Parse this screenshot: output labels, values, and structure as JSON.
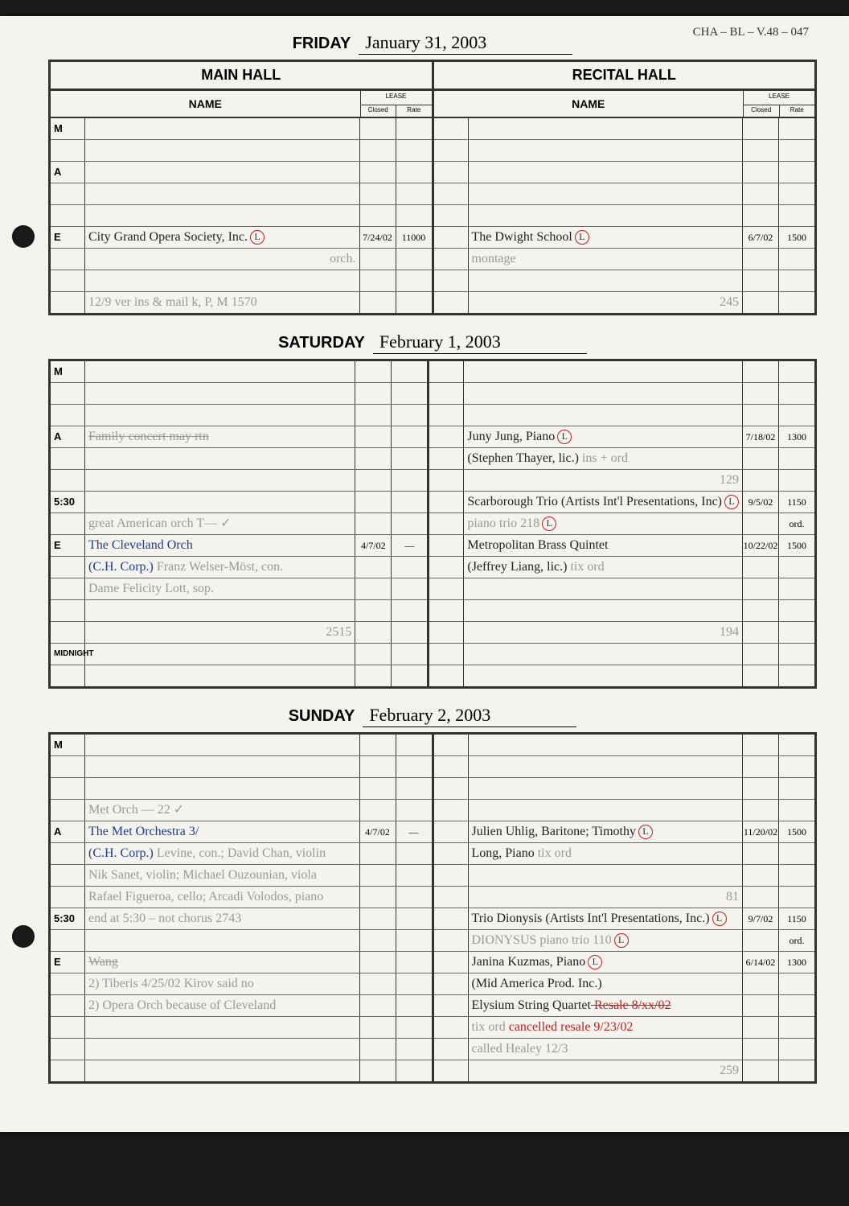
{
  "archive_ref": "CHA – BL – V.48 – 047",
  "days": [
    {
      "day_name": "FRIDAY",
      "day_date": "January 31, 2003",
      "show_hall_headers": true,
      "main": [
        {
          "time": "M",
          "name": "",
          "closed": "",
          "rate": ""
        },
        {
          "time": "",
          "name": "",
          "closed": "",
          "rate": ""
        },
        {
          "time": "A",
          "name": "",
          "closed": "",
          "rate": ""
        },
        {
          "time": "",
          "name": "",
          "closed": "",
          "rate": ""
        },
        {
          "time": "",
          "name": "",
          "closed": "",
          "rate": ""
        },
        {
          "time": "E",
          "name": "City Grand Opera Society, Inc.",
          "circled": true,
          "closed": "7/24/02",
          "rate": "11000"
        },
        {
          "time": "",
          "name": "",
          "name_extra_pencil": "orch.",
          "closed": "",
          "rate": ""
        },
        {
          "time": "",
          "name": "",
          "closed": "",
          "rate": ""
        },
        {
          "time": "",
          "name": "",
          "name_pencil": "12/9 ver ins & mail k, P, M    1570",
          "closed": "",
          "rate": ""
        }
      ],
      "recital": [
        {
          "time": "",
          "name": "",
          "closed": "",
          "rate": ""
        },
        {
          "time": "",
          "name": "",
          "closed": "",
          "rate": ""
        },
        {
          "time": "",
          "name": "",
          "closed": "",
          "rate": ""
        },
        {
          "time": "",
          "name": "",
          "closed": "",
          "rate": ""
        },
        {
          "time": "",
          "name": "",
          "closed": "",
          "rate": ""
        },
        {
          "time": "",
          "name": "The Dwight School",
          "circled": true,
          "closed": "6/7/02",
          "rate": "1500"
        },
        {
          "time": "",
          "name": "",
          "name_pencil": "montage",
          "closed": "",
          "rate": ""
        },
        {
          "time": "",
          "name": "",
          "closed": "",
          "rate": ""
        },
        {
          "time": "",
          "name": "",
          "name_pencil_right": "245",
          "closed": "",
          "rate": ""
        }
      ]
    },
    {
      "day_name": "SATURDAY",
      "day_date": "February 1, 2003",
      "show_hall_headers": false,
      "main": [
        {
          "time": "M",
          "name": "",
          "closed": "",
          "rate": ""
        },
        {
          "time": "",
          "name": "",
          "closed": "",
          "rate": ""
        },
        {
          "time": "",
          "name": "",
          "closed": "",
          "rate": ""
        },
        {
          "time": "A",
          "name": "",
          "name_pencil_strike": "Family concert  may rtn",
          "closed": "",
          "rate": ""
        },
        {
          "time": "",
          "name": "",
          "closed": "",
          "rate": ""
        },
        {
          "time": "",
          "name": "",
          "closed": "",
          "rate": ""
        },
        {
          "time": "5:30",
          "name": "",
          "closed": "",
          "rate": ""
        },
        {
          "time": "",
          "name": "",
          "name_pencil": "great American orch T—  ✓",
          "closed": "",
          "rate": ""
        },
        {
          "time": "E",
          "name_blue": "The Cleveland Orch",
          "closed": "4/7/02",
          "rate": "—"
        },
        {
          "time": "",
          "name_blue": "(C.H. Corp.)",
          "name_pencil_after": " Franz Welser-Möst, con.",
          "closed": "",
          "rate": ""
        },
        {
          "time": "",
          "name": "",
          "name_pencil": "Dame Felicity Lott, sop.",
          "closed": "",
          "rate": ""
        },
        {
          "time": "",
          "name": "",
          "closed": "",
          "rate": ""
        },
        {
          "time": "",
          "name": "",
          "name_pencil_right": "2515",
          "closed": "",
          "rate": ""
        },
        {
          "time": "MIDNIGHT",
          "name": "",
          "closed": "",
          "rate": ""
        },
        {
          "time": "",
          "name": "",
          "closed": "",
          "rate": ""
        }
      ],
      "recital": [
        {
          "time": "",
          "name": "",
          "closed": "",
          "rate": ""
        },
        {
          "time": "",
          "name": "",
          "closed": "",
          "rate": ""
        },
        {
          "time": "",
          "name": "",
          "closed": "",
          "rate": ""
        },
        {
          "time": "",
          "name": "Juny Jung, Piano",
          "circled": true,
          "closed": "7/18/02",
          "rate": "1300"
        },
        {
          "time": "",
          "name": "(Stephen Thayer, lic.)",
          "name_pencil_after": "  ins + ord",
          "closed": "",
          "rate": ""
        },
        {
          "time": "",
          "name": "",
          "name_pencil_right": "129",
          "closed": "",
          "rate": ""
        },
        {
          "time": "",
          "name": "Scarborough Trio (Artists Int'l Presentations, Inc)",
          "circled": true,
          "closed": "9/5/02",
          "rate": "1150"
        },
        {
          "time": "",
          "name": "",
          "name_pencil": "piano trio    218",
          "name_pencil_after_circled": true,
          "closed": "",
          "rate": "ord."
        },
        {
          "time": "",
          "name": "Metropolitan Brass Quintet",
          "closed": "10/22/02",
          "rate": "1500"
        },
        {
          "time": "",
          "name": "(Jeffrey Liang, lic.)",
          "name_pencil_after": "  tix ord",
          "closed": "",
          "rate": ""
        },
        {
          "time": "",
          "name": "",
          "closed": "",
          "rate": ""
        },
        {
          "time": "",
          "name": "",
          "closed": "",
          "rate": ""
        },
        {
          "time": "",
          "name": "",
          "name_pencil_right": "194",
          "closed": "",
          "rate": ""
        },
        {
          "time": "",
          "name": "",
          "closed": "",
          "rate": ""
        },
        {
          "time": "",
          "name": "",
          "closed": "",
          "rate": ""
        }
      ]
    },
    {
      "day_name": "SUNDAY",
      "day_date": "February 2, 2003",
      "show_hall_headers": false,
      "main": [
        {
          "time": "M",
          "name": "",
          "closed": "",
          "rate": ""
        },
        {
          "time": "",
          "name": "",
          "closed": "",
          "rate": ""
        },
        {
          "time": "",
          "name": "",
          "closed": "",
          "rate": ""
        },
        {
          "time": "",
          "name": "",
          "name_pencil": "Met Orch — 22        ✓",
          "closed": "",
          "rate": ""
        },
        {
          "time": "A",
          "name_blue": "The Met Orchestra        3/",
          "closed": "4/7/02",
          "rate": "—"
        },
        {
          "time": "",
          "name_blue": "(C.H. Corp.)",
          "name_pencil_after": " Levine, con.; David Chan, violin",
          "closed": "",
          "rate": ""
        },
        {
          "time": "",
          "name": "",
          "name_pencil": "Nik Sanet, violin; Michael Ouzounian, viola",
          "closed": "",
          "rate": ""
        },
        {
          "time": "",
          "name": "",
          "name_pencil": "Rafael Figueroa, cello; Arcadi Volodos, piano",
          "closed": "",
          "rate": ""
        },
        {
          "time": "5:30",
          "name": "",
          "name_pencil": "end at 5:30 – not chorus     2743",
          "closed": "",
          "rate": ""
        },
        {
          "time": "",
          "name": "",
          "closed": "",
          "rate": ""
        },
        {
          "time": "E",
          "name": "",
          "name_pencil_strike": "Wang",
          "closed": "",
          "rate": ""
        },
        {
          "time": "",
          "name": "",
          "name_pencil": "2) Tiberis 4/25/02 Kirov said no",
          "closed": "",
          "rate": ""
        },
        {
          "time": "",
          "name": "",
          "name_pencil": "2) Opera Orch    because of Cleveland",
          "closed": "",
          "rate": ""
        },
        {
          "time": "",
          "name": "",
          "closed": "",
          "rate": ""
        },
        {
          "time": "",
          "name": "",
          "closed": "",
          "rate": ""
        },
        {
          "time": "",
          "name": "",
          "closed": "",
          "rate": ""
        }
      ],
      "recital": [
        {
          "time": "",
          "name": "",
          "closed": "",
          "rate": ""
        },
        {
          "time": "",
          "name": "",
          "closed": "",
          "rate": ""
        },
        {
          "time": "",
          "name": "",
          "closed": "",
          "rate": ""
        },
        {
          "time": "",
          "name": "",
          "closed": "",
          "rate": ""
        },
        {
          "time": "",
          "name": "Julien Uhlig, Baritone; Timothy",
          "circled": true,
          "closed": "11/20/02",
          "rate": "1500"
        },
        {
          "time": "",
          "name": "Long, Piano",
          "name_pencil_after": "   tix ord",
          "closed": "",
          "rate": ""
        },
        {
          "time": "",
          "name": "",
          "closed": "",
          "rate": ""
        },
        {
          "time": "",
          "name": "",
          "name_pencil_right": "81",
          "closed": "",
          "rate": ""
        },
        {
          "time": "",
          "name": "Trio Dionysis (Artists Int'l Presentations, Inc.)",
          "circled": true,
          "closed": "9/7/02",
          "rate": "1150"
        },
        {
          "time": "",
          "name": "",
          "name_pencil": " DIONYSUS    piano trio    110",
          "name_pencil_after_circled": true,
          "closed": "",
          "rate": "ord."
        },
        {
          "time": "",
          "name": "Janina Kuzmas, Piano",
          "circled": true,
          "closed": "6/14/02",
          "rate": "1300"
        },
        {
          "time": "",
          "name": "(Mid America Prod. Inc.)",
          "closed": "",
          "rate": ""
        },
        {
          "time": "",
          "name": "Elysium String Quartet",
          "name_red_strike": "  Resale   8/xx/02",
          "closed": "",
          "rate": ""
        },
        {
          "time": "",
          "name": "",
          "name_pencil": "   tix ord",
          "name_red": "cancelled resale 9/23/02",
          "closed": "",
          "rate": ""
        },
        {
          "time": "",
          "name": "",
          "name_pencil": "called Healey 12/3",
          "closed": "",
          "rate": ""
        },
        {
          "time": "",
          "name": "",
          "name_pencil_right": "259",
          "closed": "",
          "rate": ""
        }
      ]
    }
  ],
  "headers": {
    "main_hall": "MAIN HALL",
    "recital_hall": "RECITAL HALL",
    "name": "NAME",
    "lease": "LEASE",
    "closed": "Closed",
    "rate": "Rate"
  }
}
